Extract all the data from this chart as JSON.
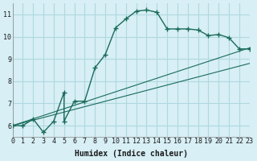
{
  "xlabel": "Humidex (Indice chaleur)",
  "ylabel": "",
  "bg_color": "#d7eff5",
  "grid_color": "#b0d8e0",
  "line_color": "#1a6b5a",
  "xlim": [
    0,
    23
  ],
  "ylim": [
    5.5,
    11.5
  ],
  "yticks": [
    6,
    7,
    8,
    9,
    10,
    11
  ],
  "xticks": [
    0,
    1,
    2,
    3,
    4,
    5,
    6,
    7,
    8,
    9,
    10,
    11,
    12,
    13,
    14,
    15,
    16,
    17,
    18,
    19,
    20,
    21,
    22,
    23
  ],
  "line1_x": [
    0,
    1,
    2,
    3,
    4,
    5,
    5,
    6,
    7,
    8,
    9,
    10,
    11,
    12,
    13,
    14,
    15,
    16,
    17,
    18,
    19,
    20,
    21,
    22,
    23
  ],
  "line1_y": [
    6.0,
    6.0,
    6.3,
    5.7,
    6.2,
    7.5,
    6.2,
    7.1,
    7.1,
    8.6,
    9.2,
    10.4,
    10.8,
    11.15,
    11.2,
    11.1,
    10.35,
    10.35,
    10.35,
    10.3,
    10.05,
    10.1,
    9.95,
    9.45,
    9.45
  ],
  "line2_x": [
    0,
    23
  ],
  "line2_y": [
    6.0,
    9.5
  ],
  "line3_x": [
    0,
    23
  ],
  "line3_y": [
    6.0,
    8.8
  ]
}
